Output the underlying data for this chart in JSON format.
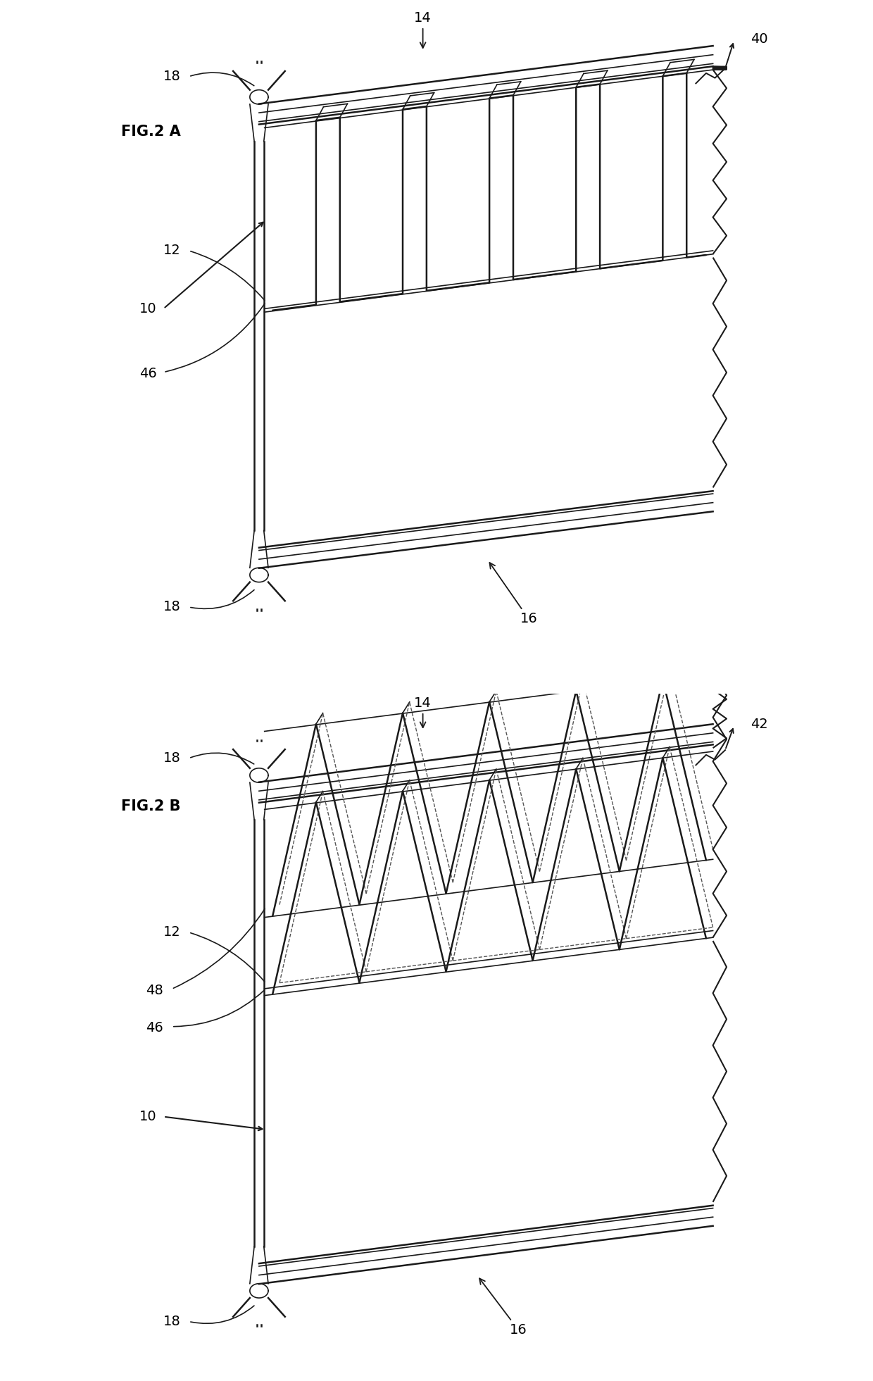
{
  "background_color": "#ffffff",
  "fig_width": 12.4,
  "fig_height": 19.61,
  "line_color": "#1a1a1a",
  "dash_color": "#555555",
  "lw_main": 1.8,
  "lw_thin": 1.2,
  "lw_dash": 1.0,
  "fig_a_label": "FIG.2 A",
  "fig_b_label": "FIG.2 B",
  "ref_40": "40",
  "ref_42": "42",
  "font_size": 14,
  "fig_label_size": 15
}
